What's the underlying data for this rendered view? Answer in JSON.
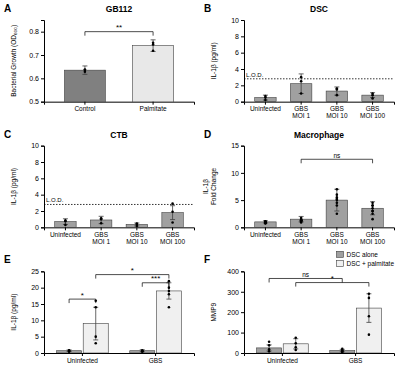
{
  "chart_data": [
    {
      "type": "bar",
      "title": "GB112",
      "y_label": "Bacterial Growth (OD₆₀₀)",
      "categories": [
        "Control",
        "Palmitate"
      ],
      "series": [
        {
          "values": [
            0.635,
            0.74
          ],
          "errors": [
            0.018,
            0.025
          ],
          "colors": [
            "#808080",
            "#e8e8e8"
          ],
          "points": [
            [
              0.628,
              0.638,
              0.636
            ],
            [
              0.718,
              0.752,
              0.745
            ]
          ]
        }
      ],
      "ylim": [
        0.5,
        0.85
      ],
      "yticks": [
        0.5,
        0.6,
        0.7,
        0.8
      ],
      "annotations": [
        {
          "type": "panel_label",
          "text": "A"
        },
        {
          "type": "bracket",
          "text": "**",
          "y": 0.8,
          "from": {
            "category": "Control"
          },
          "to": {
            "category": "Palmitate"
          }
        }
      ]
    },
    {
      "type": "bar",
      "title": "DSC",
      "y_label": "IL-1β (pg/ml)",
      "categories": [
        "Uninfected",
        "GBS\nMOI 1",
        "GBS\nMOI 10",
        "GBS\nMOI 100"
      ],
      "series": [
        {
          "values": [
            0.5,
            2.2,
            1.3,
            0.8
          ],
          "errors": [
            0.3,
            1.2,
            0.5,
            0.3
          ],
          "color": "#a0a0a0",
          "points": [
            [
              0.2,
              0.5,
              0.7
            ],
            [
              1.0,
              3.0,
              2.5
            ],
            [
              0.8,
              1.5,
              1.6
            ],
            [
              0.4,
              0.8,
              1.0
            ]
          ]
        }
      ],
      "ylim": [
        0,
        10
      ],
      "yticks": [
        0,
        2,
        4,
        6,
        8,
        10
      ],
      "annotations": [
        {
          "type": "panel_label",
          "text": "B"
        },
        {
          "type": "line",
          "text": "L.O.D.",
          "y": 2.8
        }
      ]
    },
    {
      "type": "bar",
      "title": "CTB",
      "y_label": "IL-1β (pg/ml)",
      "categories": [
        "Uninfected",
        "GBS\nMOI 1",
        "GBS\nMOI 10",
        "GBS\nMOI 100"
      ],
      "series": [
        {
          "values": [
            0.7,
            0.9,
            0.35,
            1.8
          ],
          "errors": [
            0.35,
            0.45,
            0.18,
            0.85
          ],
          "color": "#a0a0a0",
          "points": [
            [
              0.3,
              0.85,
              0.75
            ],
            [
              0.5,
              1.0,
              1.1
            ],
            [
              0.15,
              0.4,
              0.45
            ],
            [
              0.6,
              1.9,
              2.9
            ]
          ]
        }
      ],
      "ylim": [
        0,
        10
      ],
      "yticks": [
        0,
        2,
        4,
        6,
        8,
        10
      ],
      "annotations": [
        {
          "type": "panel_label",
          "text": "C"
        },
        {
          "type": "line",
          "text": "L.O.D.",
          "y": 2.8
        }
      ]
    },
    {
      "type": "bar",
      "title": "Macrophage",
      "y_label": "IL-1β\nFold Change",
      "categories": [
        "Uninfected",
        "GBS\nMOI 1",
        "GBS\nMOI 10",
        "GBS\nMOI 100"
      ],
      "series": [
        {
          "values": [
            1.0,
            1.5,
            5.0,
            3.5
          ],
          "errors": [
            0.2,
            0.5,
            2.0,
            1.2
          ],
          "color": "#a0a0a0",
          "points": [
            [
              0.7,
              0.9,
              1.1,
              0.8,
              1.0,
              0.9,
              0.8,
              1.1
            ],
            [
              0.9,
              1.2,
              1.4,
              1.7,
              1.3,
              1.3,
              1.4,
              1.1
            ],
            [
              2.5,
              4.0,
              5.2,
              7.0,
              5.5,
              6.0,
              4.5,
              5.0
            ],
            [
              1.5,
              2.5,
              3.5,
              4.5,
              3.0,
              4.0,
              3.0,
              4.0
            ]
          ]
        }
      ],
      "ylim": [
        0,
        15
      ],
      "yticks": [
        0,
        5,
        10,
        15
      ],
      "annotations": [
        {
          "type": "panel_label",
          "text": "D"
        },
        {
          "type": "bracket",
          "text": "ns",
          "y": 12.5,
          "from": {
            "category": "GBS\nMOI 1"
          },
          "to": {
            "category": "GBS\nMOI 100"
          }
        }
      ]
    },
    {
      "type": "bar",
      "y_label": "IL-1β (pg/ml)",
      "categories": [
        "Uninfected",
        "GBS"
      ],
      "series": [
        {
          "values": [
            0.7,
            0.7
          ],
          "errors": [
            0.25,
            0.3
          ],
          "color": "#a0a0a0",
          "points": [
            [
              0.4,
              0.6,
              0.8,
              0.7
            ],
            [
              0.4,
              0.6,
              0.55,
              0.8
            ]
          ]
        },
        {
          "values": [
            9.0,
            19.0
          ],
          "errors": [
            5.0,
            2.5
          ],
          "color": "#f0f0f0",
          "points": [
            [
              3.0,
              5.0,
              14.0,
              16.0
            ],
            [
              14.0,
              18.0,
              20.0,
              22.0,
              19.0
            ]
          ]
        }
      ],
      "ylim": [
        0,
        25
      ],
      "yticks": [
        0,
        5,
        10,
        15,
        20,
        25
      ],
      "annotations": [
        {
          "type": "panel_label",
          "text": "E"
        },
        {
          "type": "bracket",
          "text": "*",
          "y": 16.5,
          "from": {
            "category": "Uninfected",
            "series": 0
          },
          "to": {
            "category": "Uninfected",
            "series": 1
          }
        },
        {
          "type": "bracket",
          "text": "*",
          "y": 24.0,
          "from": {
            "category": "Uninfected",
            "series": 1
          },
          "to": {
            "category": "GBS",
            "series": 1
          }
        },
        {
          "type": "bracket",
          "text": "***",
          "y": 21.5,
          "from": {
            "category": "GBS",
            "series": 0
          },
          "to": {
            "category": "GBS",
            "series": 1
          }
        }
      ]
    },
    {
      "type": "bar",
      "y_label": "MMP9",
      "categories": [
        "Uninfected",
        "GBS"
      ],
      "series": [
        {
          "name": "DSC alone",
          "values": [
            25,
            12
          ],
          "errors": [
            15,
            6
          ],
          "color": "#a0a0a0",
          "points": [
            [
              8,
              18,
              38,
              55
            ],
            [
              4,
              9,
              13,
              20
            ]
          ]
        },
        {
          "name": "DSC + palmitate",
          "values": [
            45,
            220
          ],
          "errors": [
            25,
            70
          ],
          "color": "#f0f0f0",
          "points": [
            [
              15,
              28,
              48,
              75
            ],
            [
              90,
              180,
              270,
              290
            ]
          ]
        }
      ],
      "ylim": [
        0,
        400
      ],
      "yticks": [
        0,
        100,
        200,
        300,
        400
      ],
      "legend": "upper right",
      "annotations": [
        {
          "type": "panel_label",
          "text": "F"
        },
        {
          "type": "bracket",
          "text": "ns",
          "y": 365,
          "from": {
            "category": "Uninfected",
            "series": 0
          },
          "to": {
            "category": "GBS",
            "series": 0
          }
        },
        {
          "type": "bracket",
          "text": "*",
          "y": 345,
          "from": {
            "category": "Uninfected",
            "series": 1
          },
          "to": {
            "category": "GBS",
            "series": 1
          }
        }
      ]
    }
  ]
}
